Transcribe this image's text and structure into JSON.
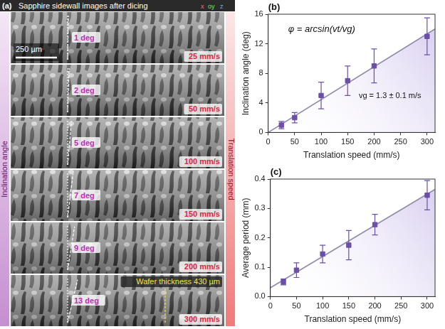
{
  "image_panel": {
    "letter": "(a)",
    "title": "Sapphire sidewall images after dicing",
    "scale_bar": "250 µm",
    "axis_labels": [
      "x",
      "oy",
      "z"
    ],
    "side_labels": {
      "left": "Inclination angle",
      "right": "Translation speed"
    },
    "strips": [
      {
        "angle": {
          "value": 1,
          "label": "1 deg"
        },
        "speed": "25 mm/s"
      },
      {
        "angle": {
          "value": 2,
          "label": "2 deg"
        },
        "speed": "50 mm/s"
      },
      {
        "angle": {
          "value": 5,
          "label": "5 deg"
        },
        "speed": "100 mm/s"
      },
      {
        "angle": {
          "value": 7,
          "label": "7 deg"
        },
        "speed": "150 mm/s"
      },
      {
        "angle": {
          "value": 9,
          "label": "9 deg"
        },
        "speed": "200 mm/s"
      },
      {
        "angle": {
          "value": 13,
          "label": "13 deg"
        },
        "speed": "300 mm/s"
      }
    ],
    "thickness_label": "Wafer thickness 430 µm"
  },
  "chart_data": [
    {
      "type": "scatter",
      "letter": "(b)",
      "x_label": "Translation speed (mm/s)",
      "y_label": "Inclination angle (deg)",
      "xlim": [
        0,
        315
      ],
      "xticks": [
        0,
        50,
        100,
        150,
        200,
        250,
        300
      ],
      "ylim": [
        0,
        16
      ],
      "yticks": [
        0,
        4,
        8,
        12,
        16
      ],
      "grid": false,
      "annotations": [
        "φ = arcsin(vt/vg)",
        "vg = 1.3 ± 0.1 m/s"
      ],
      "series": [
        {
          "type": "scatter",
          "marker": "square",
          "color": "#6b4fa8",
          "x": [
            25,
            50,
            100,
            150,
            200,
            300
          ],
          "values": [
            1,
            2,
            5,
            7,
            9,
            13
          ],
          "errors": [
            0.5,
            0.7,
            1.8,
            2.0,
            2.3,
            2.5
          ]
        },
        {
          "type": "line",
          "line_style": "solid",
          "color": "#8e8ca8",
          "x": [
            0,
            315
          ],
          "values": [
            0,
            14.0
          ]
        }
      ]
    },
    {
      "type": "scatter",
      "letter": "(c)",
      "x_label": "Translation speed (mm/s)",
      "y_label": "Average period (mm)",
      "xlim": [
        0,
        315
      ],
      "xticks": [
        0,
        50,
        100,
        150,
        200,
        250,
        300
      ],
      "ylim": [
        0,
        0.4
      ],
      "yticks": [
        {
          "value": 0,
          "label": "0.0"
        },
        0.1,
        0.2,
        0.3,
        0.4
      ],
      "grid": false,
      "series": [
        {
          "type": "scatter",
          "marker": "square",
          "color": "#6b4fa8",
          "x": [
            25,
            50,
            100,
            150,
            200,
            300
          ],
          "values": [
            0.05,
            0.09,
            0.145,
            0.175,
            0.245,
            0.345
          ],
          "errors": [
            0.01,
            0.025,
            0.03,
            0.05,
            0.035,
            0.05
          ]
        },
        {
          "type": "line",
          "line_style": "solid",
          "color": "#8e8ca8",
          "x": [
            0,
            315
          ],
          "values": [
            0.03,
            0.365
          ]
        }
      ]
    }
  ]
}
